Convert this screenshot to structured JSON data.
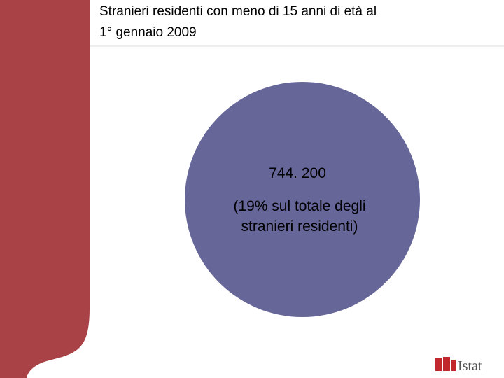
{
  "slide": {
    "title_lines": [
      "Stranieri residenti con meno di 15 anni di età  al",
      "1° gennaio 2009"
    ],
    "figure": "744. 200",
    "note_lines": [
      "(19% sul totale degli",
      "stranieri residenti)"
    ],
    "logo": "Istat"
  }
}
